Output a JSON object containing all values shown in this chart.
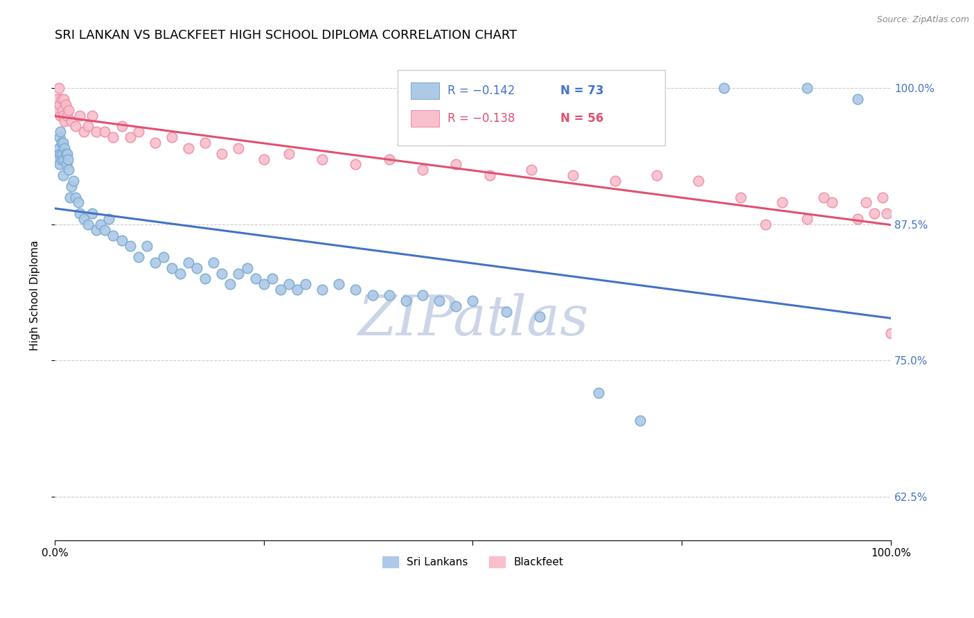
{
  "title": "SRI LANKAN VS BLACKFEET HIGH SCHOOL DIPLOMA CORRELATION CHART",
  "source": "Source: ZipAtlas.com",
  "ylabel": "High School Diploma",
  "xlim": [
    0,
    1
  ],
  "ylim": [
    0.585,
    1.035
  ],
  "yticks": [
    0.625,
    0.75,
    0.875,
    1.0
  ],
  "ytick_labels": [
    "62.5%",
    "75.0%",
    "87.5%",
    "100.0%"
  ],
  "xticks": [
    0.0,
    0.25,
    0.5,
    0.75,
    1.0
  ],
  "xtick_labels": [
    "0.0%",
    "",
    "",
    "",
    "100.0%"
  ],
  "legend_labels": [
    "Sri Lankans",
    "Blackfeet"
  ],
  "sri_lankan_R": "R = −0.142",
  "sri_lankan_N": "N = 73",
  "blackfeet_R": "R = −0.138",
  "blackfeet_N": "N = 56",
  "blue_color": "#aec8e8",
  "blue_edge_color": "#7aaed0",
  "pink_color": "#f8c0cc",
  "pink_edge_color": "#f090a8",
  "blue_line_color": "#4472c4",
  "pink_line_color": "#e05070",
  "watermark_color": "#ccd5e8",
  "background_color": "#ffffff",
  "sri_lankans_x": [
    0.003,
    0.004,
    0.005,
    0.006,
    0.006,
    0.007,
    0.007,
    0.008,
    0.008,
    0.009,
    0.01,
    0.01,
    0.011,
    0.012,
    0.013,
    0.014,
    0.015,
    0.016,
    0.017,
    0.018,
    0.02,
    0.022,
    0.025,
    0.028,
    0.03,
    0.035,
    0.04,
    0.045,
    0.05,
    0.055,
    0.06,
    0.065,
    0.07,
    0.08,
    0.09,
    0.1,
    0.11,
    0.12,
    0.13,
    0.14,
    0.15,
    0.16,
    0.17,
    0.18,
    0.19,
    0.2,
    0.21,
    0.22,
    0.23,
    0.24,
    0.25,
    0.26,
    0.27,
    0.28,
    0.29,
    0.3,
    0.32,
    0.34,
    0.36,
    0.38,
    0.4,
    0.42,
    0.44,
    0.46,
    0.48,
    0.5,
    0.54,
    0.58,
    0.65,
    0.7,
    0.8,
    0.9,
    0.96
  ],
  "sri_lankans_y": [
    0.94,
    0.935,
    0.945,
    0.93,
    0.955,
    0.94,
    0.96,
    0.935,
    0.95,
    0.94,
    0.95,
    0.92,
    0.935,
    0.945,
    0.94,
    0.93,
    0.94,
    0.935,
    0.925,
    0.9,
    0.91,
    0.915,
    0.9,
    0.895,
    0.885,
    0.88,
    0.875,
    0.885,
    0.87,
    0.875,
    0.87,
    0.88,
    0.865,
    0.86,
    0.855,
    0.845,
    0.855,
    0.84,
    0.845,
    0.835,
    0.83,
    0.84,
    0.835,
    0.825,
    0.84,
    0.83,
    0.82,
    0.83,
    0.835,
    0.825,
    0.82,
    0.825,
    0.815,
    0.82,
    0.815,
    0.82,
    0.815,
    0.82,
    0.815,
    0.81,
    0.81,
    0.805,
    0.81,
    0.805,
    0.8,
    0.805,
    0.795,
    0.79,
    0.72,
    0.695,
    1.0,
    1.0,
    0.99
  ],
  "blackfeet_x": [
    0.003,
    0.004,
    0.005,
    0.006,
    0.007,
    0.008,
    0.009,
    0.01,
    0.011,
    0.012,
    0.013,
    0.015,
    0.017,
    0.02,
    0.025,
    0.03,
    0.035,
    0.04,
    0.045,
    0.05,
    0.06,
    0.07,
    0.08,
    0.09,
    0.1,
    0.12,
    0.14,
    0.16,
    0.18,
    0.2,
    0.22,
    0.25,
    0.28,
    0.32,
    0.36,
    0.4,
    0.44,
    0.48,
    0.52,
    0.57,
    0.62,
    0.67,
    0.72,
    0.77,
    0.82,
    0.87,
    0.92,
    0.97,
    0.98,
    0.99,
    0.995,
    1.0,
    0.85,
    0.9,
    0.93,
    0.96
  ],
  "blackfeet_y": [
    0.99,
    0.98,
    1.0,
    0.985,
    0.975,
    0.99,
    0.98,
    0.975,
    0.99,
    0.97,
    0.985,
    0.975,
    0.98,
    0.97,
    0.965,
    0.975,
    0.96,
    0.965,
    0.975,
    0.96,
    0.96,
    0.955,
    0.965,
    0.955,
    0.96,
    0.95,
    0.955,
    0.945,
    0.95,
    0.94,
    0.945,
    0.935,
    0.94,
    0.935,
    0.93,
    0.935,
    0.925,
    0.93,
    0.92,
    0.925,
    0.92,
    0.915,
    0.92,
    0.915,
    0.9,
    0.895,
    0.9,
    0.895,
    0.885,
    0.9,
    0.885,
    0.775,
    0.875,
    0.88,
    0.895,
    0.88
  ]
}
